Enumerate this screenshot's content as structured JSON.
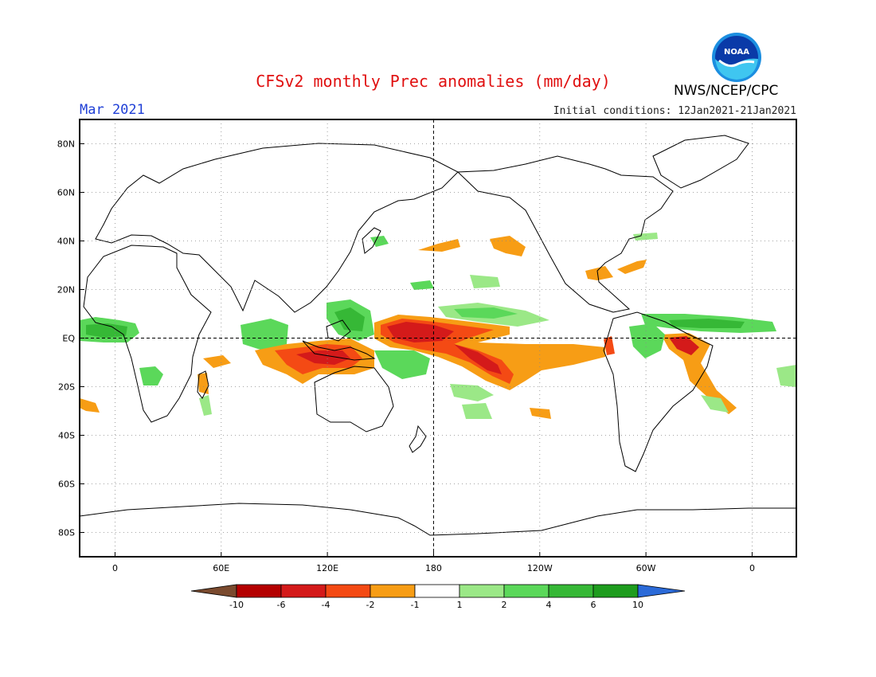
{
  "header": {
    "title": "CFSv2 monthly Prec anomalies (mm/day)",
    "period": "Mar 2021",
    "initial_conditions": "Initial conditions: 12Jan2021-21Jan2021",
    "agency": "NWS/NCEP/CPC",
    "logo_text": "NOAA"
  },
  "map": {
    "lat_labels": [
      "80N",
      "60N",
      "40N",
      "20N",
      "EQ",
      "20S",
      "40S",
      "60S",
      "80S"
    ],
    "lon_labels": [
      "0",
      "60E",
      "120E",
      "180",
      "120W",
      "60W",
      "0"
    ],
    "lon_range": [
      -20,
      385
    ],
    "lat_range": [
      -90,
      90
    ]
  },
  "legend": {
    "tick_labels": [
      "-10",
      "-6",
      "-4",
      "-2",
      "-1",
      "1",
      "2",
      "4",
      "6",
      "10"
    ],
    "colors": [
      "#7a4a2e",
      "#b40000",
      "#d41a1a",
      "#f44a14",
      "#f79d15",
      "#ffffff",
      "#9be887",
      "#5bd85a",
      "#36b836",
      "#1e9c1e",
      "#2b6ad8"
    ]
  },
  "anomaly_colors": {
    "dry_light": "#f79d15",
    "dry_mid": "#f44a14",
    "dry_strong": "#d41a1a",
    "wet_light": "#9be887",
    "wet_mid": "#5bd85a",
    "wet_strong": "#36b836"
  }
}
